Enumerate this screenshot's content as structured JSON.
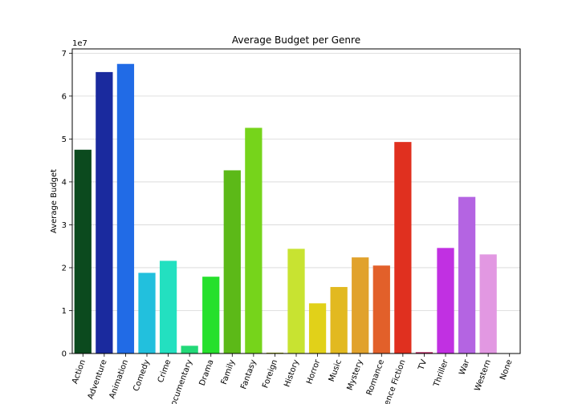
{
  "chart_data": {
    "type": "bar",
    "title": "Average Budget per Genre",
    "xlabel": "",
    "ylabel": "Average Budget",
    "y_scale_label": "1e7",
    "y_tick_values": [
      0,
      1,
      2,
      3,
      4,
      5,
      6,
      7
    ],
    "ylim": [
      0,
      7.1
    ],
    "grid": "horizontal",
    "categories": [
      "Action",
      "Adventure",
      "Animation",
      "Comedy",
      "Crime",
      "Documentary",
      "Drama",
      "Family",
      "Fantasy",
      "Foreign",
      "History",
      "Horror",
      "Music",
      "Mystery",
      "Romance",
      "Science Fiction",
      "TV",
      "Thriller",
      "War",
      "Western",
      "None"
    ],
    "values": [
      4.75,
      6.56,
      6.75,
      1.88,
      2.16,
      0.18,
      1.79,
      4.27,
      5.26,
      0.02,
      2.44,
      1.17,
      1.55,
      2.24,
      2.05,
      4.93,
      0.03,
      2.46,
      3.65,
      2.31,
      0.0
    ],
    "colors": [
      "#0b4a1e",
      "#1a2a9e",
      "#216be6",
      "#22c0dd",
      "#23e0c0",
      "#22d978",
      "#26e02c",
      "#5cb918",
      "#76d41b",
      "#a0b010",
      "#c8e331",
      "#e1d119",
      "#e2b920",
      "#e1a22c",
      "#e2602a",
      "#e0301f",
      "#b00f50",
      "#c130e2",
      "#b464e2",
      "#e298e2",
      "#b000b0"
    ]
  }
}
